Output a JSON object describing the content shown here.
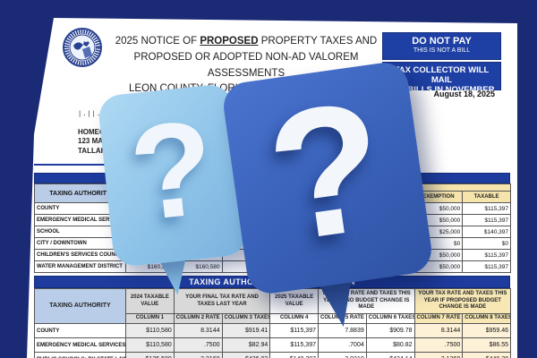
{
  "document": {
    "seal_alt": "leon-county-property-appraiser-seal",
    "title_prefix": "2025 NOTICE OF ",
    "title_bold": "PROPOSED",
    "title_suffix": " PROPERTY TAXES AND",
    "title_line2": "PROPOSED OR ADOPTED NON-AD VALOREM ASSESSMENTS",
    "title_line3": "LEON COUNTY, FLORIDA TAXING AUTHORITIES",
    "do_not_pay": {
      "line1": "DO NOT PAY",
      "line2": "THIS IS NOT A BILL"
    },
    "tax_collector": {
      "line1": "TAX COLLECTOR WILL MAIL",
      "line2": "TAX BILLS IN NOVEMBER"
    },
    "mail_date": "August 18, 2025",
    "barcode": "|.||..|.||.|",
    "address": {
      "line1": "HOMEOWNER",
      "line2": "123 MAIN ST",
      "line3": "TALLAHASSEE, FL"
    }
  },
  "value_table": {
    "section_title": "",
    "col_authority": "TAXING AUTHORITY",
    "year_groups": [
      "",
      ""
    ],
    "headers": [
      "",
      "",
      "",
      "",
      "",
      "",
      "EXEMPTION",
      "TAXABLE"
    ],
    "rows": [
      {
        "authority": "COUNTY",
        "v": [
          "$160,580",
          "$160,580",
          "$50,000",
          "$110,580",
          "$165,397",
          "$165,397",
          "$50,000",
          "$115,397"
        ]
      },
      {
        "authority": "EMERGENCY MEDICAL SERVICES",
        "v": [
          "$160,580",
          "$160,580",
          "$50,000",
          "$110,580",
          "$165,397",
          "$165,397",
          "$50,000",
          "$115,397"
        ]
      },
      {
        "authority": "SCHOOL",
        "v": [
          "$160,580",
          "$160,580",
          "$25,000",
          "$135,580",
          "$165,397",
          "$165,397",
          "$25,000",
          "$140,397"
        ]
      },
      {
        "authority": "CITY / DOWNTOWN",
        "v": [
          "$0",
          "$0",
          "$0",
          "$0",
          "$0",
          "$0",
          "$0",
          "$0"
        ]
      },
      {
        "authority": "CHILDREN'S SERVICES COUNCIL",
        "v": [
          "$160,580",
          "$160,580",
          "$50,000",
          "$110,580",
          "$165,397",
          "$165,397",
          "$50,000",
          "$115,397"
        ]
      },
      {
        "authority": "WATER MANAGEMENT DISTRICT",
        "v": [
          "$160,580",
          "$160,580",
          "$50,000",
          "$110,580",
          "$165,397",
          "$165,397",
          "$50,000",
          "$115,397"
        ]
      }
    ]
  },
  "tax_table": {
    "section_title": "TAXING AUTHORITY TAX INFORMATION",
    "col_authority": "TAXING AUTHORITY",
    "groups": [
      "2024 TAXABLE VALUE",
      "YOUR FINAL TAX RATE AND TAXES LAST YEAR",
      "2025 TAXABLE VALUE",
      "YOUR TAX RATE AND TAXES THIS YEAR IF NO BUDGET CHANGE IS MADE",
      "YOUR TAX RATE AND TAXES THIS YEAR IF PROPOSED BUDGET CHANGE IS MADE"
    ],
    "subs": [
      "COLUMN 1",
      "COLUMN 2 RATE",
      "COLUMN 3 TAXES",
      "COLUMN 4",
      "COLUMN 5 RATE",
      "COLUMN 6 TAXES",
      "COLUMN 7 RATE",
      "COLUMN 8 TAXES"
    ],
    "rows": [
      {
        "authority": "COUNTY",
        "v": [
          "$110,580",
          "8.3144",
          "$919.41",
          "$115,397",
          "7.8839",
          "$909.78",
          "8.3144",
          "$959.46"
        ]
      },
      {
        "authority": "EMERGENCY MEDICAL SERVICES",
        "v": [
          "$110,580",
          ".7500",
          "$82.94",
          "$115,397",
          ".7004",
          "$80.82",
          ".7500",
          "$86.55"
        ]
      },
      {
        "authority": "PUBLIC SCHOOLS: BY STATE LAW",
        "v": [
          "$135,580",
          "3.2160",
          "$436.03",
          "$140,397",
          "3.0210",
          "$424.14",
          "3.1360",
          "$440.28"
        ]
      }
    ]
  },
  "bubbles": {
    "light_mark": "?",
    "dark_mark": "?"
  },
  "colors": {
    "frame_navy": "#1b2a75",
    "bar_navy": "#1e3c9e",
    "box_navy": "#1e3fa3",
    "header_blue": "#b9cde8",
    "header_tan": "#f5e4ac",
    "header_gray": "#d9d9d9",
    "cell_cream": "#fdf2d8",
    "bubble_light": "#8fc4e9",
    "bubble_dark": "#3a62ba"
  }
}
